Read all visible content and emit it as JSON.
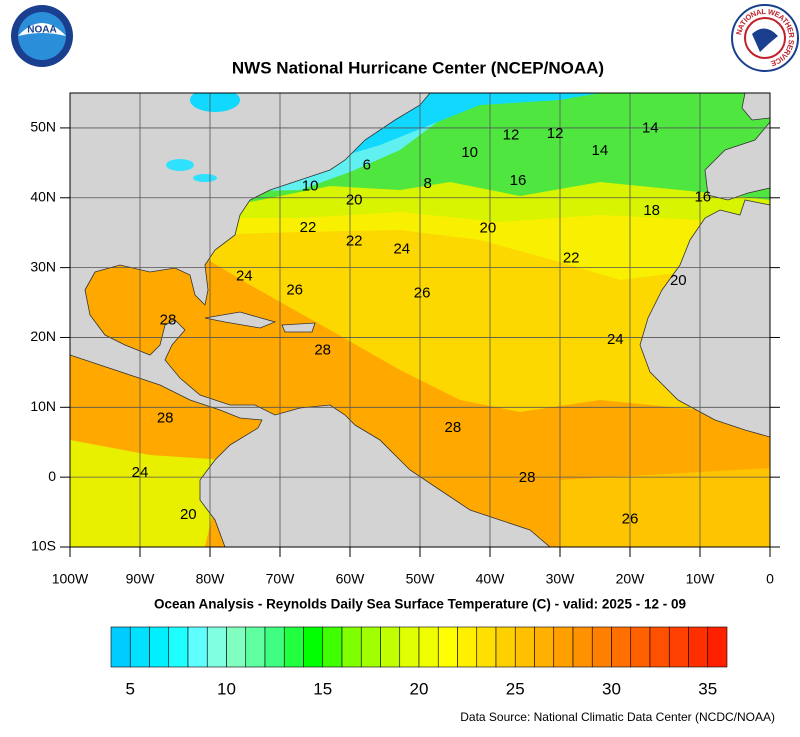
{
  "header": {
    "title": "NWS National Hurricane Center (NCEP/NOAA)",
    "left_logo": "NOAA",
    "right_logo": "NATIONAL WEATHER SERVICE"
  },
  "map": {
    "subtitle": "Ocean Analysis - Reynolds Daily Sea Surface Temperature (C) - valid: 2025 - 12 - 09",
    "xlim": [
      -100,
      0
    ],
    "ylim": [
      -10,
      55
    ],
    "xticks": [
      {
        "value": -100,
        "label": "100W"
      },
      {
        "value": -90,
        "label": "90W"
      },
      {
        "value": -80,
        "label": "80W"
      },
      {
        "value": -70,
        "label": "70W"
      },
      {
        "value": -60,
        "label": "60W"
      },
      {
        "value": -50,
        "label": "50W"
      },
      {
        "value": -40,
        "label": "40W"
      },
      {
        "value": -30,
        "label": "30W"
      },
      {
        "value": -20,
        "label": "20W"
      },
      {
        "value": -10,
        "label": "10W"
      },
      0
    ],
    "yticks": [
      {
        "value": -10,
        "label": "10S"
      },
      0,
      {
        "value": 10,
        "label": "10N"
      },
      {
        "value": 20,
        "label": "20N"
      },
      {
        "value": 30,
        "label": "30N"
      },
      {
        "value": 40,
        "label": "40N"
      },
      {
        "value": 50,
        "label": "50N"
      }
    ],
    "contour_labels": [
      {
        "value": 12,
        "lon": -37,
        "lat": 48.9
      },
      {
        "value": 12,
        "lon": -30.7,
        "lat": 49.1
      },
      {
        "value": 14,
        "lon": -17.1,
        "lat": 49.9
      },
      {
        "value": 14,
        "lon": -24.3,
        "lat": 46.7
      },
      {
        "value": 10,
        "lon": -42.9,
        "lat": 46.4
      },
      {
        "value": 8,
        "lon": -48.9,
        "lat": 42
      },
      {
        "value": 6,
        "lon": -57.6,
        "lat": 44.6
      },
      {
        "value": 10,
        "lon": -65.7,
        "lat": 41.6
      },
      {
        "value": 20,
        "lon": -59.4,
        "lat": 39.6
      },
      {
        "value": 22,
        "lon": -66,
        "lat": 35.7
      },
      {
        "value": 22,
        "lon": -59.4,
        "lat": 33.7
      },
      {
        "value": 24,
        "lon": -52.6,
        "lat": 32.6
      },
      {
        "value": 20,
        "lon": -40.3,
        "lat": 35.6
      },
      {
        "value": 18,
        "lon": -16.9,
        "lat": 38.1
      },
      {
        "value": 16,
        "lon": -36,
        "lat": 42.4
      },
      {
        "value": 16,
        "lon": -9.6,
        "lat": 40
      },
      {
        "value": 24,
        "lon": -75.1,
        "lat": 28.7
      },
      {
        "value": 22,
        "lon": -28.4,
        "lat": 31.3
      },
      {
        "value": 20,
        "lon": -13.1,
        "lat": 28.1
      },
      {
        "value": 26,
        "lon": -67.9,
        "lat": 26.7
      },
      {
        "value": 26,
        "lon": -49.7,
        "lat": 26.3
      },
      {
        "value": 28,
        "lon": -86,
        "lat": 22.4
      },
      {
        "value": 28,
        "lon": -63.9,
        "lat": 18.1
      },
      {
        "value": 24,
        "lon": -22.1,
        "lat": 19.6
      },
      {
        "value": 28,
        "lon": -86.4,
        "lat": 8.4
      },
      {
        "value": 28,
        "lon": -45.3,
        "lat": 7
      },
      {
        "value": 28,
        "lon": -34.7,
        "lat": -0.1
      },
      {
        "value": 24,
        "lon": -90,
        "lat": 0.6
      },
      {
        "value": 20,
        "lon": -83.1,
        "lat": -5.4
      },
      {
        "value": 26,
        "lon": -20,
        "lat": -6.1
      }
    ]
  },
  "colorbar": {
    "lim": [
      4,
      36
    ],
    "ticks": [
      5,
      10,
      15,
      20,
      25,
      30,
      35
    ],
    "colors": [
      "#00ccff",
      "#00e0ff",
      "#00f0ff",
      "#20ffff",
      "#60ffff",
      "#80ffe0",
      "#80ffc0",
      "#60ffa0",
      "#40ff80",
      "#20ff40",
      "#00ff00",
      "#40ff00",
      "#80ff00",
      "#a0ff00",
      "#c0ff00",
      "#e0ff00",
      "#f0ff00",
      "#ffff00",
      "#fff000",
      "#ffe000",
      "#ffd000",
      "#ffc000",
      "#ffb000",
      "#ffa000",
      "#ff9000",
      "#ff8000",
      "#ff7000",
      "#ff6000",
      "#ff5000",
      "#ff4000",
      "#ff3000",
      "#ff2000"
    ]
  },
  "source": "Data Source: National Climatic Data Center (NCDC/NOAA)"
}
